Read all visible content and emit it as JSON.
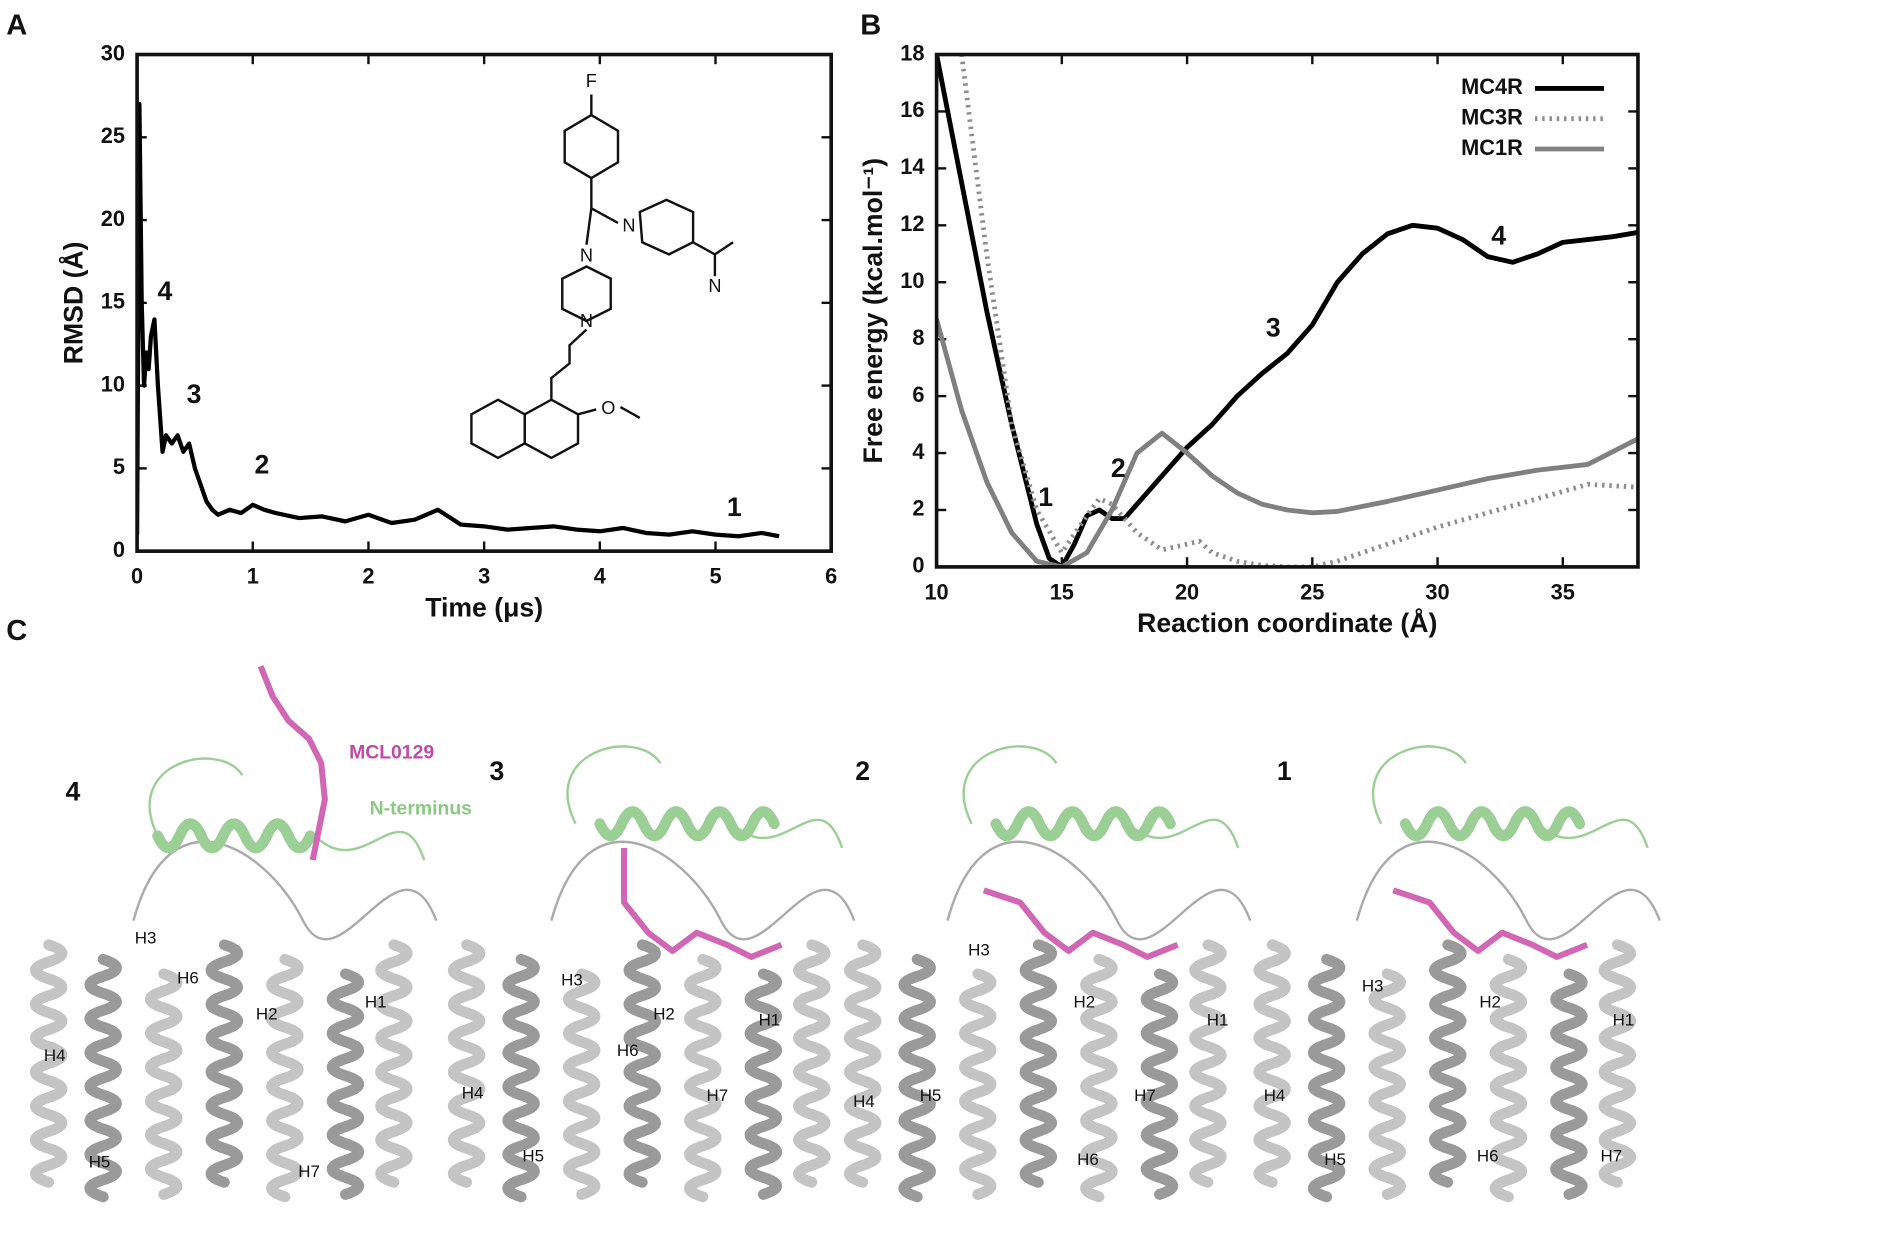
{
  "chart_data": [
    {
      "type": "line",
      "panel_label": "A",
      "xlabel": "Time (μs)",
      "ylabel": "RMSD (Å)",
      "xlim": [
        0,
        6
      ],
      "ylim": [
        0,
        30
      ],
      "xticks": [
        0,
        1,
        2,
        3,
        4,
        5,
        6
      ],
      "yticks": [
        0,
        5,
        10,
        15,
        20,
        25,
        30
      ],
      "color": "#000000",
      "x": [
        0,
        0.02,
        0.04,
        0.06,
        0.08,
        0.1,
        0.12,
        0.15,
        0.18,
        0.2,
        0.22,
        0.25,
        0.3,
        0.35,
        0.4,
        0.45,
        0.5,
        0.55,
        0.6,
        0.65,
        0.7,
        0.8,
        0.9,
        1.0,
        1.1,
        1.2,
        1.4,
        1.6,
        1.8,
        2.0,
        2.2,
        2.4,
        2.6,
        2.8,
        3.0,
        3.2,
        3.4,
        3.6,
        3.8,
        4.0,
        4.2,
        4.4,
        4.6,
        4.8,
        5.0,
        5.2,
        5.4,
        5.55
      ],
      "values": [
        1,
        27,
        15,
        10,
        12,
        11,
        13,
        14,
        10,
        8,
        6,
        7,
        6.5,
        7,
        6,
        6.5,
        5,
        4,
        3,
        2.5,
        2.2,
        2.5,
        2.3,
        2.8,
        2.5,
        2.3,
        2,
        2.1,
        1.8,
        2.2,
        1.7,
        1.9,
        2.5,
        1.6,
        1.5,
        1.3,
        1.4,
        1.5,
        1.3,
        1.2,
        1.4,
        1.1,
        1.0,
        1.2,
        1.0,
        0.9,
        1.1,
        0.9
      ],
      "annotations": [
        "4",
        "3",
        "2",
        "1"
      ],
      "molecule_atoms": [
        "F",
        "N",
        "N",
        "N",
        "N",
        "O"
      ]
    },
    {
      "type": "line",
      "panel_label": "B",
      "xlabel": "Reaction coordinate (Å)",
      "ylabel": "Free energy (kcal.mol⁻¹)",
      "xlim": [
        10,
        38
      ],
      "ylim": [
        0,
        18
      ],
      "xticks": [
        10,
        15,
        20,
        25,
        30,
        35
      ],
      "yticks": [
        0,
        2,
        4,
        6,
        8,
        10,
        12,
        14,
        16,
        18
      ],
      "legend": "upper right",
      "series": [
        {
          "name": "MC4R",
          "color": "#000000",
          "style": "solid",
          "x": [
            10,
            11,
            12,
            13,
            14,
            14.5,
            15,
            15.5,
            16,
            16.5,
            17,
            17.5,
            18,
            19,
            20,
            21,
            22,
            23,
            24,
            25,
            26,
            27,
            28,
            29,
            30,
            31,
            32,
            33,
            34,
            35,
            36,
            37,
            38
          ],
          "values": [
            18,
            13.5,
            9,
            5,
            1.5,
            0.3,
            0,
            0.8,
            1.8,
            2.0,
            1.7,
            1.7,
            2.2,
            3.2,
            4.2,
            5.0,
            6.0,
            6.8,
            7.5,
            8.5,
            10,
            11,
            11.7,
            12,
            11.9,
            11.5,
            10.9,
            10.7,
            11,
            11.4,
            11.5,
            11.6,
            11.75
          ]
        },
        {
          "name": "MC3R",
          "color": "#8c8c8c",
          "style": "dotted",
          "x": [
            11,
            12,
            13,
            14,
            15,
            16,
            16.5,
            17,
            18,
            19,
            20,
            20.5,
            21,
            22,
            23,
            24,
            25,
            26,
            28,
            30,
            32,
            34,
            36,
            38
          ],
          "values": [
            18,
            11,
            5,
            2,
            0.5,
            1.8,
            2.4,
            2.2,
            1.2,
            0.6,
            0.8,
            0.9,
            0.5,
            0.2,
            0.05,
            0,
            0,
            0.2,
            0.8,
            1.4,
            1.9,
            2.4,
            2.9,
            2.8
          ]
        },
        {
          "name": "MC1R",
          "color": "#808080",
          "style": "solid",
          "x": [
            10,
            11,
            12,
            13,
            14,
            15,
            16,
            17,
            18,
            19,
            20,
            21,
            22,
            23,
            24,
            25,
            26,
            28,
            30,
            32,
            34,
            36,
            38
          ],
          "values": [
            8.7,
            5.5,
            3,
            1.2,
            0.2,
            0,
            0.5,
            2,
            4,
            4.7,
            4,
            3.2,
            2.6,
            2.2,
            2,
            1.9,
            1.95,
            2.3,
            2.7,
            3.1,
            3.4,
            3.6,
            4.5
          ]
        }
      ],
      "annotations": [
        "1",
        "2",
        "3",
        "4"
      ]
    }
  ],
  "panel_c": {
    "label": "C",
    "ligand_label": "MCL0129",
    "terminus_label": "N-terminus",
    "structures": [
      {
        "label": "4",
        "helices": [
          "H3",
          "H6",
          "H2",
          "H1",
          "H4",
          "H5",
          "H7"
        ]
      },
      {
        "label": "3",
        "helices": [
          "H3",
          "H2",
          "H1",
          "H6",
          "H7",
          "H4",
          "H5"
        ]
      },
      {
        "label": "2",
        "helices": [
          "H3",
          "H2",
          "H1",
          "H7",
          "H4",
          "H5",
          "H6"
        ]
      },
      {
        "label": "1",
        "helices": [
          "H3",
          "H2",
          "H1",
          "H4",
          "H5",
          "H6",
          "H7"
        ]
      }
    ]
  }
}
